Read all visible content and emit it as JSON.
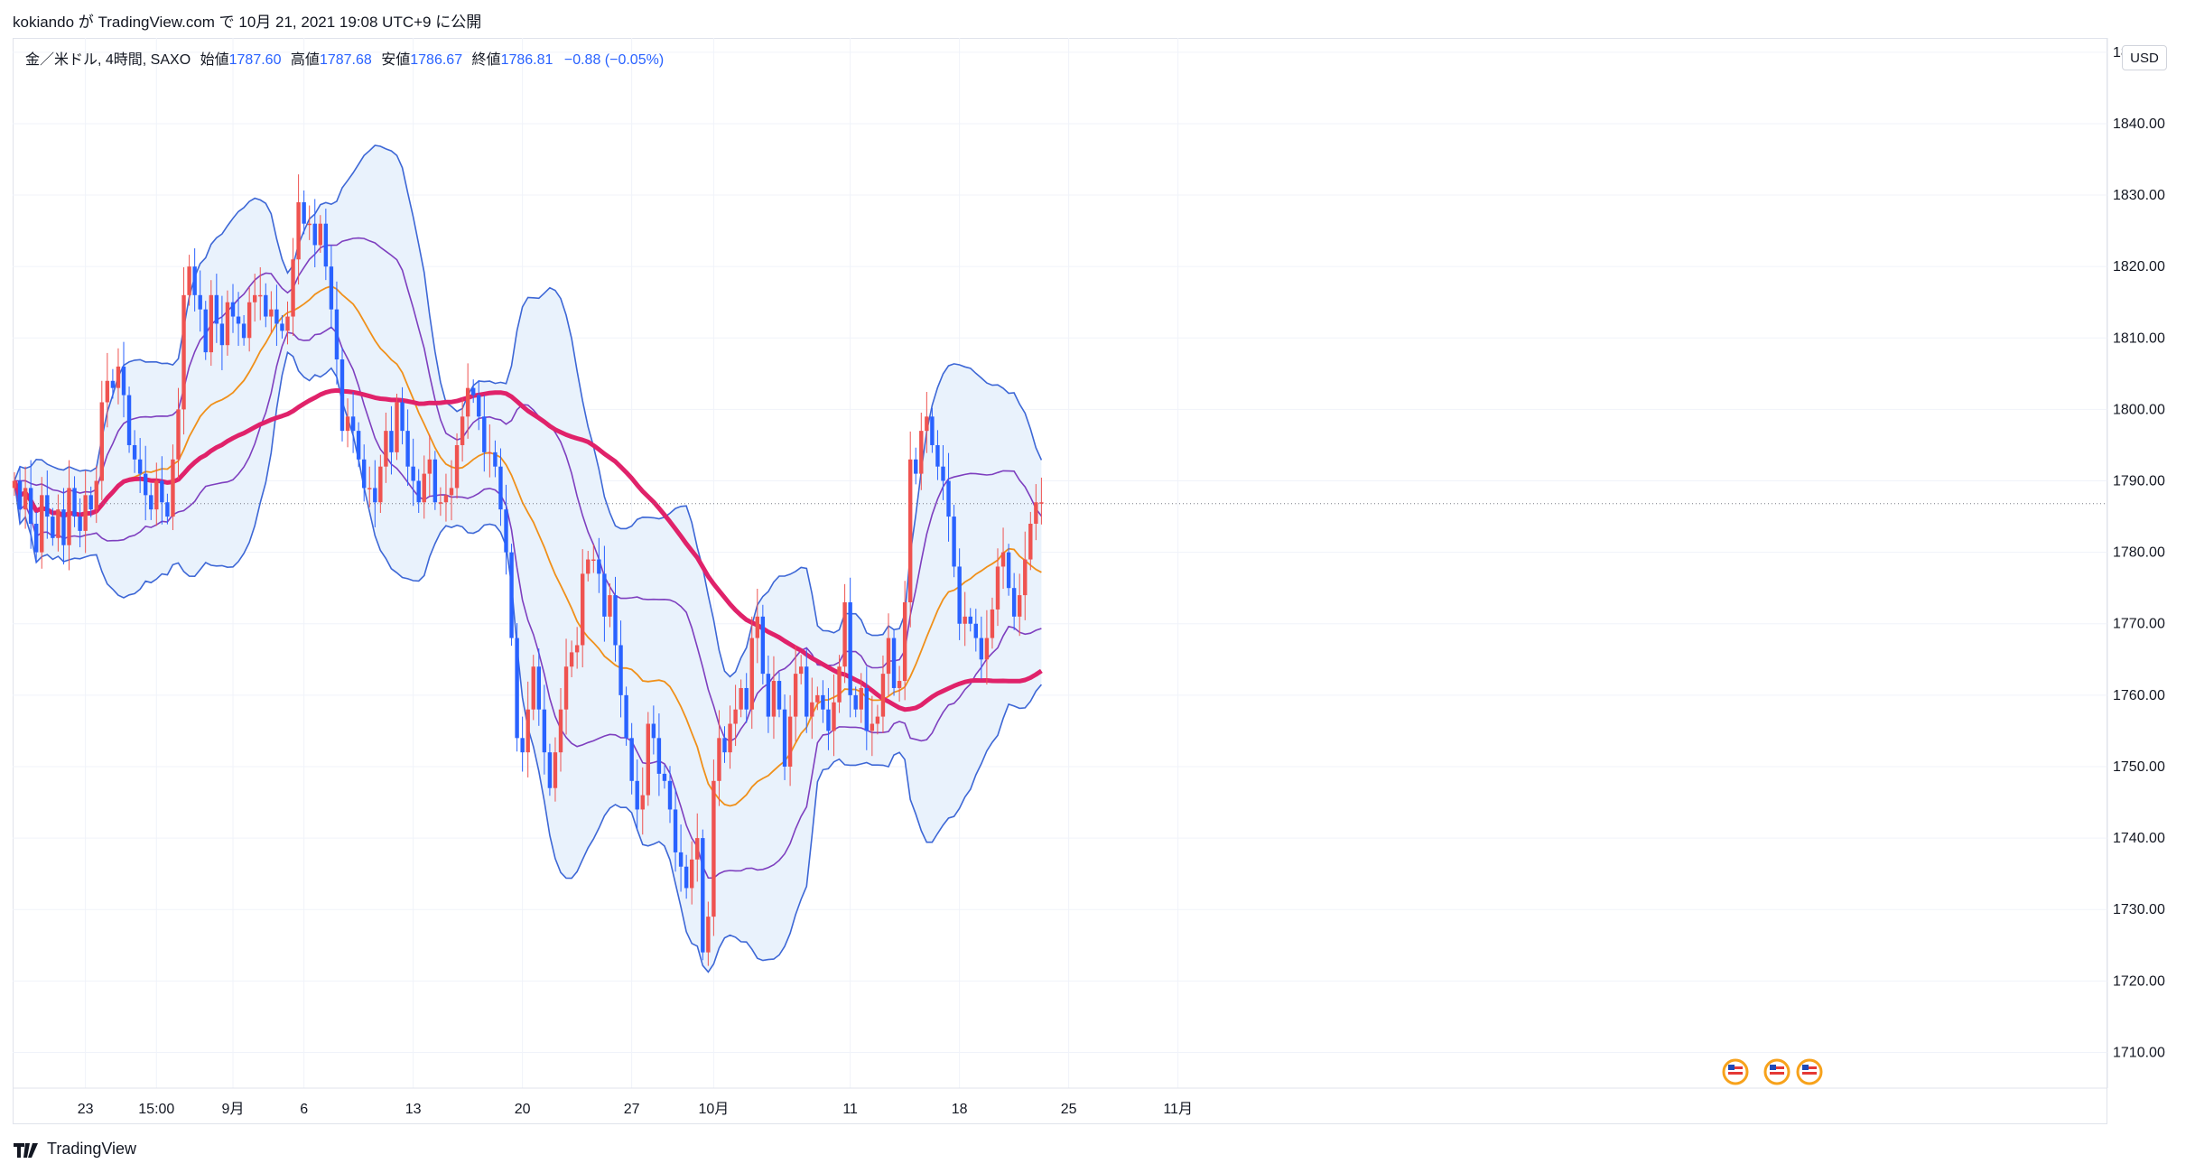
{
  "header": {
    "attribution": "kokiando が TradingView.com で 10月 21, 2021 19:08 UTC+9 に公開"
  },
  "legend": {
    "symbol": "金／米ドル, 4時間, SAXO",
    "open_label": "始値",
    "open": "1787.60",
    "high_label": "高値",
    "high": "1787.68",
    "low_label": "安値",
    "low": "1786.67",
    "close_label": "終値",
    "close": "1786.81",
    "change": "−0.88 (−0.05%)"
  },
  "currency": "USD",
  "footer": {
    "brand": "TradingView"
  },
  "colors": {
    "up": "#ef5350",
    "down": "#2962ff",
    "bb_outer": "#3d67d6",
    "bb_inner": "#7e3fbf",
    "bb_mid": "#f0901a",
    "ma": "#e0226a",
    "band_fill": "#e9f2fc"
  },
  "chart_data": {
    "type": "candlestick",
    "ylim": [
      1705,
      1852
    ],
    "y_ticks": [
      "1710.00",
      "1720.00",
      "1730.00",
      "1740.00",
      "1750.00",
      "1760.00",
      "1770.00",
      "1780.00",
      "1790.00",
      "1800.00",
      "1810.00",
      "1820.00",
      "1830.00",
      "1840.00",
      "1850.00"
    ],
    "x_ticks": [
      {
        "label": "23",
        "bar": 13
      },
      {
        "label": "15:00",
        "bar": 26
      },
      {
        "label": "9月",
        "bar": 40
      },
      {
        "label": "6",
        "bar": 53
      },
      {
        "label": "13",
        "bar": 73
      },
      {
        "label": "20",
        "bar": 93
      },
      {
        "label": "27",
        "bar": 113
      },
      {
        "label": "10月",
        "bar": 128
      },
      {
        "label": "11",
        "bar": 153
      },
      {
        "label": "18",
        "bar": 173
      },
      {
        "label": "25",
        "bar": 193
      },
      {
        "label": "11月",
        "bar": 213
      }
    ],
    "last_price": 1786.81,
    "closes": [
      1790,
      1786,
      1789,
      1784,
      1780,
      1788,
      1785,
      1782,
      1786,
      1781,
      1789,
      1785,
      1783,
      1788,
      1786,
      1790,
      1801,
      1804,
      1803,
      1806,
      1802,
      1795,
      1793,
      1791,
      1788,
      1786,
      1790,
      1787,
      1785,
      1793,
      1800,
      1816,
      1820,
      1816,
      1814,
      1808,
      1816,
      1812,
      1809,
      1815,
      1813,
      1812,
      1810,
      1815,
      1816,
      1816,
      1813,
      1814,
      1812,
      1811,
      1813,
      1821,
      1829,
      1826,
      1826,
      1823,
      1826,
      1820,
      1814,
      1807,
      1797,
      1799,
      1797,
      1793,
      1789,
      1789,
      1787,
      1792,
      1797,
      1794,
      1801,
      1797,
      1792,
      1790,
      1787,
      1791,
      1793,
      1787,
      1787,
      1788,
      1789,
      1795,
      1799,
      1803,
      1802,
      1799,
      1794,
      1794,
      1792,
      1786,
      1780,
      1768,
      1754,
      1752,
      1758,
      1764,
      1758,
      1752,
      1747,
      1752,
      1758,
      1764,
      1766,
      1767,
      1777,
      1779,
      1779,
      1777,
      1771,
      1774,
      1767,
      1760,
      1754,
      1748,
      1744,
      1746,
      1756,
      1754,
      1749,
      1748,
      1744,
      1738,
      1736,
      1733,
      1737,
      1740,
      1724,
      1729,
      1748,
      1754,
      1752,
      1756,
      1758,
      1761,
      1758,
      1768,
      1771,
      1763,
      1757,
      1762,
      1758,
      1750,
      1757,
      1763,
      1764,
      1757,
      1759,
      1760,
      1758,
      1755,
      1759,
      1764,
      1773,
      1760,
      1758,
      1761,
      1755,
      1756,
      1757,
      1763,
      1768,
      1761,
      1762,
      1773,
      1793,
      1791,
      1797,
      1799,
      1795,
      1792,
      1790,
      1785,
      1778,
      1770,
      1771,
      1770,
      1768,
      1765,
      1768,
      1772,
      1778,
      1780,
      1775,
      1771,
      1774,
      1779,
      1784,
      1787,
      1787
    ]
  }
}
